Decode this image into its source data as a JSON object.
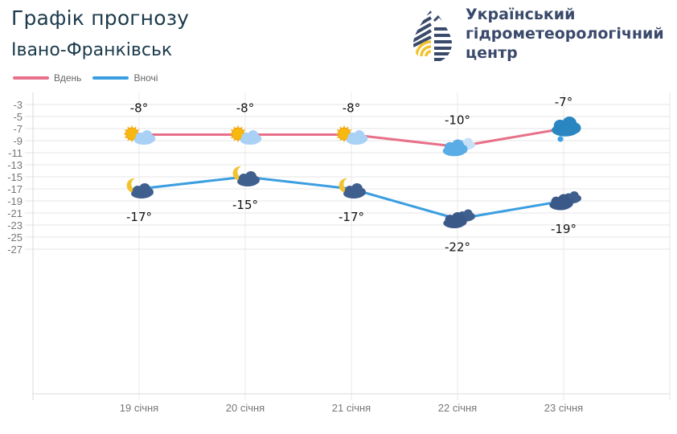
{
  "header": {
    "title": "Графік прогнозу",
    "city": "Івано-Франківськ"
  },
  "organization": {
    "line1": "Український",
    "line2": "гідрометеорологічний",
    "line3": "центр"
  },
  "legend": [
    {
      "label": "Вдень",
      "color": "#e8708a"
    },
    {
      "label": "Вночі",
      "color": "#3b9ee0"
    }
  ],
  "chart_data": {
    "type": "line",
    "title": "Графік прогнозу Івано-Франківськ",
    "xlabel": "",
    "ylabel": "",
    "categories": [
      "19 січня",
      "20 січня",
      "21 січня",
      "22 січня",
      "23 січня"
    ],
    "series": [
      {
        "name": "Вдень",
        "color": "#e8708a",
        "values": [
          -8,
          -8,
          -8,
          -10,
          -7
        ],
        "icons": [
          "sun-cloud-icon",
          "sun-cloud-icon",
          "sun-cloud-icon",
          "cloud-icon",
          "snow-cloud-icon"
        ]
      },
      {
        "name": "Вночі",
        "color": "#3b9ee0",
        "values": [
          -17,
          -15,
          -17,
          -22,
          -19
        ],
        "icons": [
          "moon-cloud-icon",
          "moon-cloud-icon",
          "moon-cloud-icon",
          "dark-cloud-icon",
          "dark-cloud-icon"
        ]
      }
    ],
    "data_labels": {
      "day": [
        "-8°",
        "-8°",
        "-8°",
        "-10°",
        "-7°"
      ],
      "night": [
        "-17°",
        "-15°",
        "-17°",
        "-22°",
        "-19°"
      ]
    },
    "yticks": [
      "-3",
      "-5",
      "-7",
      "-9",
      "-11",
      "-13",
      "-15",
      "-17",
      "-19",
      "-21",
      "-23",
      "-25",
      "-27"
    ],
    "ylim": [
      -27,
      -3
    ],
    "grid": true,
    "legend_position": "top-left"
  }
}
